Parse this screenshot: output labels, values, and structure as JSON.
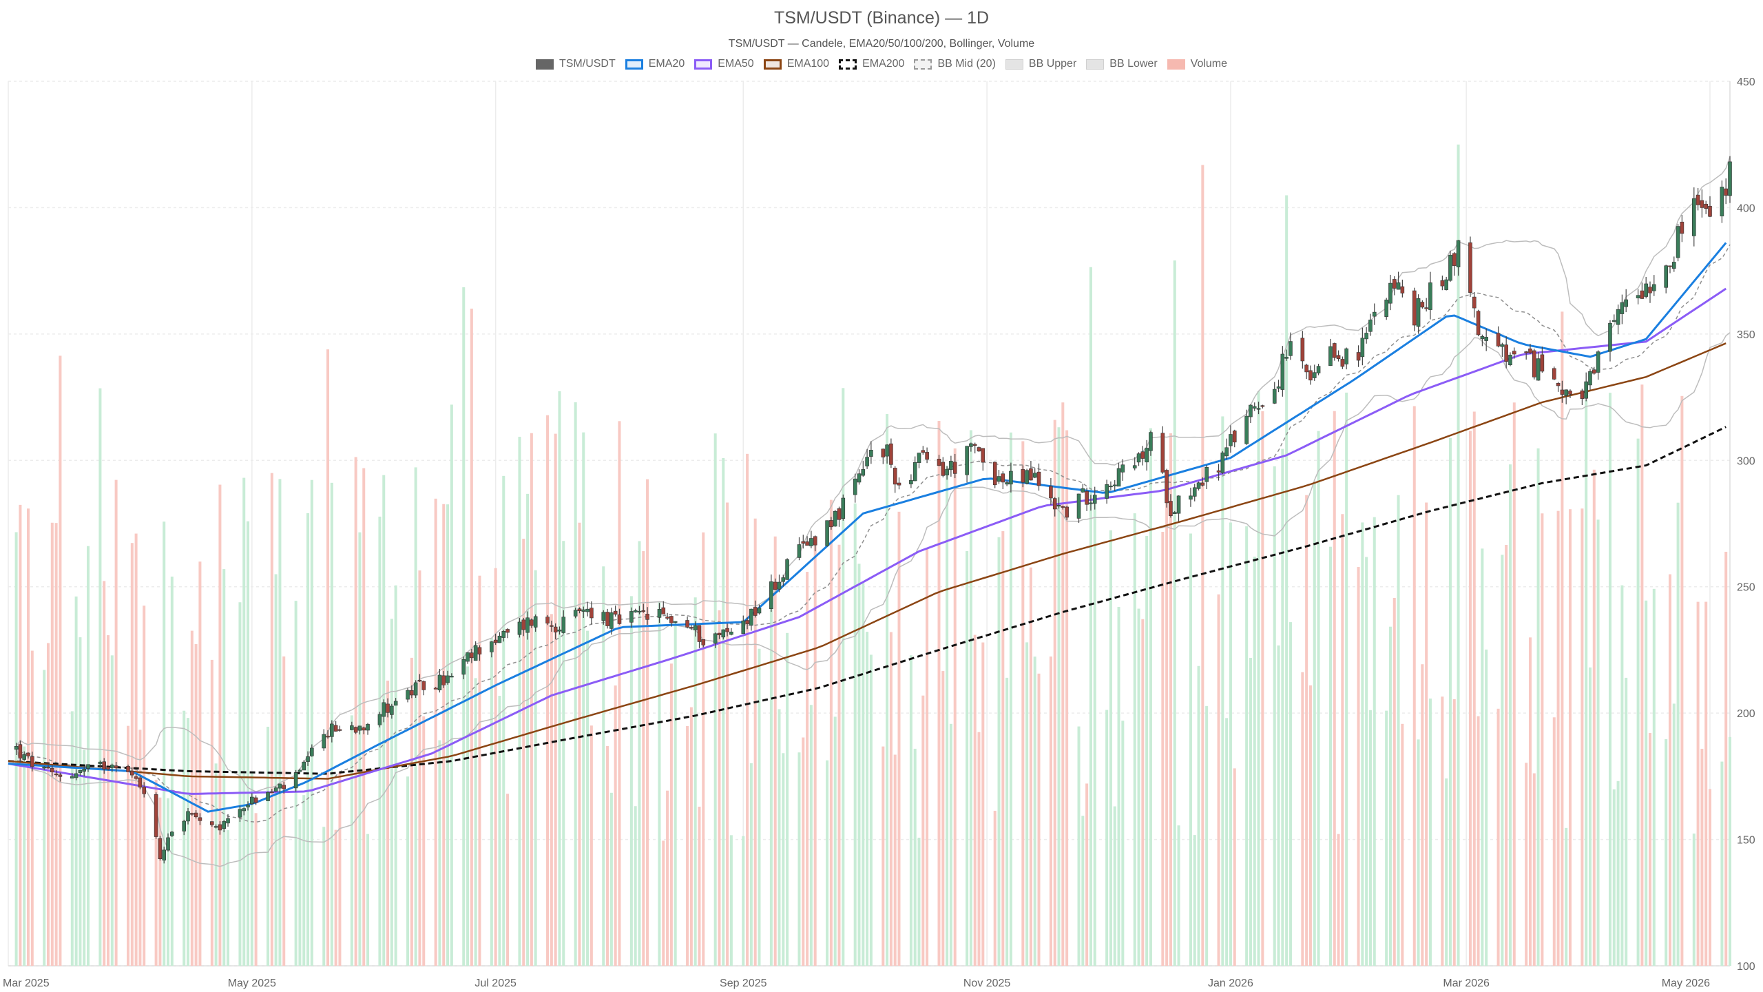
{
  "title": "TSM/USDT (Binance) — 1D",
  "subtitle": "TSM/USDT — Candele, EMA20/50/100/200, Bollinger, Volume",
  "legend": [
    {
      "label": "TSM/USDT",
      "color": "#666666",
      "style": "solid-fill"
    },
    {
      "label": "EMA20",
      "color": "#1a7fe0",
      "style": "line"
    },
    {
      "label": "EMA50",
      "color": "#8b5cf6",
      "style": "line"
    },
    {
      "label": "EMA100",
      "color": "#8b4513",
      "style": "line"
    },
    {
      "label": "EMA200",
      "color": "#111111",
      "style": "dashed"
    },
    {
      "label": "BB Mid (20)",
      "color": "#999999",
      "style": "dashed-light"
    },
    {
      "label": "BB Upper",
      "color": "#bbbbbb",
      "style": "light"
    },
    {
      "label": "BB Lower",
      "color": "#bbbbbb",
      "style": "light"
    },
    {
      "label": "Volume",
      "color": "#f6b9b0",
      "style": "volume"
    }
  ],
  "colors": {
    "up": "#3a7d5a",
    "down": "#a0433a",
    "ema20": "#1a7fe0",
    "ema50": "#8b5cf6",
    "ema100": "#8b4513",
    "ema200": "#111111",
    "bb": "#bdbdbd",
    "bbmid": "#8f8f8f",
    "vol_up": "#c8ecd6",
    "vol_down": "#f8c9c3",
    "grid": "#ececec"
  },
  "chart_data": {
    "type": "candlestick",
    "x_range": [
      "2025-03-01",
      "2026-05-06"
    ],
    "ylim": [
      100,
      450
    ],
    "grid": true,
    "legend_position": "top-center",
    "y_ticks": [
      100,
      150,
      200,
      250,
      300,
      350,
      400,
      450
    ],
    "x_ticks": [
      {
        "date": "2025-03-01",
        "label": "Mar 2025"
      },
      {
        "date": "2025-05-01",
        "label": "May 2025"
      },
      {
        "date": "2025-07-01",
        "label": "Jul 2025"
      },
      {
        "date": "2025-09-01",
        "label": "Sep 2025"
      },
      {
        "date": "2025-11-01",
        "label": "Nov 2025"
      },
      {
        "date": "2026-01-01",
        "label": "Jan 2026"
      },
      {
        "date": "2026-03-01",
        "label": "Mar 2026"
      },
      {
        "date": "2026-05-01",
        "label": "May 2026"
      }
    ],
    "price_anchors": [
      [
        "2025-03-01",
        190
      ],
      [
        "2025-03-05",
        182
      ],
      [
        "2025-03-12",
        175
      ],
      [
        "2025-03-20",
        177
      ],
      [
        "2025-03-28",
        181
      ],
      [
        "2025-04-04",
        170
      ],
      [
        "2025-04-08",
        143
      ],
      [
        "2025-04-10",
        152
      ],
      [
        "2025-04-15",
        160
      ],
      [
        "2025-04-22",
        153
      ],
      [
        "2025-04-28",
        163
      ],
      [
        "2025-05-05",
        168
      ],
      [
        "2025-05-12",
        174
      ],
      [
        "2025-05-20",
        193
      ],
      [
        "2025-05-28",
        195
      ],
      [
        "2025-06-05",
        204
      ],
      [
        "2025-06-12",
        210
      ],
      [
        "2025-06-20",
        214
      ],
      [
        "2025-06-28",
        228
      ],
      [
        "2025-07-03",
        230
      ],
      [
        "2025-07-10",
        237
      ],
      [
        "2025-07-18",
        235
      ],
      [
        "2025-07-24",
        241
      ],
      [
        "2025-07-31",
        236
      ],
      [
        "2025-08-08",
        239
      ],
      [
        "2025-08-15",
        237
      ],
      [
        "2025-08-22",
        230
      ],
      [
        "2025-08-29",
        232
      ],
      [
        "2025-09-05",
        243
      ],
      [
        "2025-09-12",
        258
      ],
      [
        "2025-09-20",
        272
      ],
      [
        "2025-09-28",
        285
      ],
      [
        "2025-10-03",
        303
      ],
      [
        "2025-10-07",
        302
      ],
      [
        "2025-10-10",
        290
      ],
      [
        "2025-10-15",
        300
      ],
      [
        "2025-10-22",
        296
      ],
      [
        "2025-10-29",
        304
      ],
      [
        "2025-11-05",
        291
      ],
      [
        "2025-11-12",
        294
      ],
      [
        "2025-11-20",
        280
      ],
      [
        "2025-11-25",
        285
      ],
      [
        "2025-12-01",
        292
      ],
      [
        "2025-12-08",
        297
      ],
      [
        "2025-12-12",
        308
      ],
      [
        "2025-12-17",
        282
      ],
      [
        "2025-12-23",
        290
      ],
      [
        "2025-12-30",
        300
      ],
      [
        "2026-01-06",
        321
      ],
      [
        "2026-01-12",
        329
      ],
      [
        "2026-01-16",
        345
      ],
      [
        "2026-01-21",
        330
      ],
      [
        "2026-01-27",
        342
      ],
      [
        "2026-02-02",
        340
      ],
      [
        "2026-02-06",
        360
      ],
      [
        "2026-02-10",
        372
      ],
      [
        "2026-02-16",
        357
      ],
      [
        "2026-02-22",
        370
      ],
      [
        "2026-02-27",
        384
      ],
      [
        "2026-03-05",
        347
      ],
      [
        "2026-03-12",
        340
      ],
      [
        "2026-03-19",
        337
      ],
      [
        "2026-03-25",
        330
      ],
      [
        "2026-03-30",
        323
      ],
      [
        "2026-04-04",
        342
      ],
      [
        "2026-04-10",
        365
      ],
      [
        "2026-04-17",
        372
      ],
      [
        "2026-04-22",
        384
      ],
      [
        "2026-04-27",
        402
      ],
      [
        "2026-05-02",
        395
      ],
      [
        "2026-05-06",
        414
      ]
    ],
    "ema20": [
      [
        "2025-03-01",
        180
      ],
      [
        "2025-04-01",
        177
      ],
      [
        "2025-04-20",
        161
      ],
      [
        "2025-05-01",
        164
      ],
      [
        "2025-05-15",
        173
      ],
      [
        "2025-06-01",
        187
      ],
      [
        "2025-07-01",
        211
      ],
      [
        "2025-08-01",
        234
      ],
      [
        "2025-09-01",
        236
      ],
      [
        "2025-10-01",
        279
      ],
      [
        "2025-11-01",
        293
      ],
      [
        "2025-12-01",
        287
      ],
      [
        "2026-01-01",
        301
      ],
      [
        "2026-02-01",
        332
      ],
      [
        "2026-02-25",
        358
      ],
      [
        "2026-03-15",
        346
      ],
      [
        "2026-04-01",
        341
      ],
      [
        "2026-04-15",
        348
      ],
      [
        "2026-05-06",
        388
      ]
    ],
    "ema50": [
      [
        "2025-03-01",
        180
      ],
      [
        "2025-04-15",
        168
      ],
      [
        "2025-05-15",
        169
      ],
      [
        "2025-06-15",
        184
      ],
      [
        "2025-07-15",
        207
      ],
      [
        "2025-08-15",
        222
      ],
      [
        "2025-09-15",
        238
      ],
      [
        "2025-10-15",
        264
      ],
      [
        "2025-11-15",
        282
      ],
      [
        "2025-12-15",
        288
      ],
      [
        "2026-01-15",
        302
      ],
      [
        "2026-02-15",
        326
      ],
      [
        "2026-03-15",
        342
      ],
      [
        "2026-04-15",
        347
      ],
      [
        "2026-05-06",
        369
      ]
    ],
    "ema100": [
      [
        "2025-03-01",
        181
      ],
      [
        "2025-04-15",
        175
      ],
      [
        "2025-05-20",
        174
      ],
      [
        "2025-06-20",
        183
      ],
      [
        "2025-07-20",
        197
      ],
      [
        "2025-08-20",
        211
      ],
      [
        "2025-09-20",
        226
      ],
      [
        "2025-10-20",
        248
      ],
      [
        "2025-11-20",
        263
      ],
      [
        "2025-12-20",
        276
      ],
      [
        "2026-01-20",
        290
      ],
      [
        "2026-02-20",
        307
      ],
      [
        "2026-03-20",
        323
      ],
      [
        "2026-04-15",
        333
      ],
      [
        "2026-05-06",
        347
      ]
    ],
    "ema200": [
      [
        "2025-03-01",
        181
      ],
      [
        "2025-04-15",
        177
      ],
      [
        "2025-05-20",
        176
      ],
      [
        "2025-06-20",
        181
      ],
      [
        "2025-07-20",
        190
      ],
      [
        "2025-08-20",
        199
      ],
      [
        "2025-09-20",
        210
      ],
      [
        "2025-10-20",
        225
      ],
      [
        "2025-11-20",
        240
      ],
      [
        "2025-12-20",
        253
      ],
      [
        "2026-01-20",
        266
      ],
      [
        "2026-02-20",
        280
      ],
      [
        "2026-03-20",
        291
      ],
      [
        "2026-04-15",
        298
      ],
      [
        "2026-05-06",
        314
      ]
    ]
  }
}
